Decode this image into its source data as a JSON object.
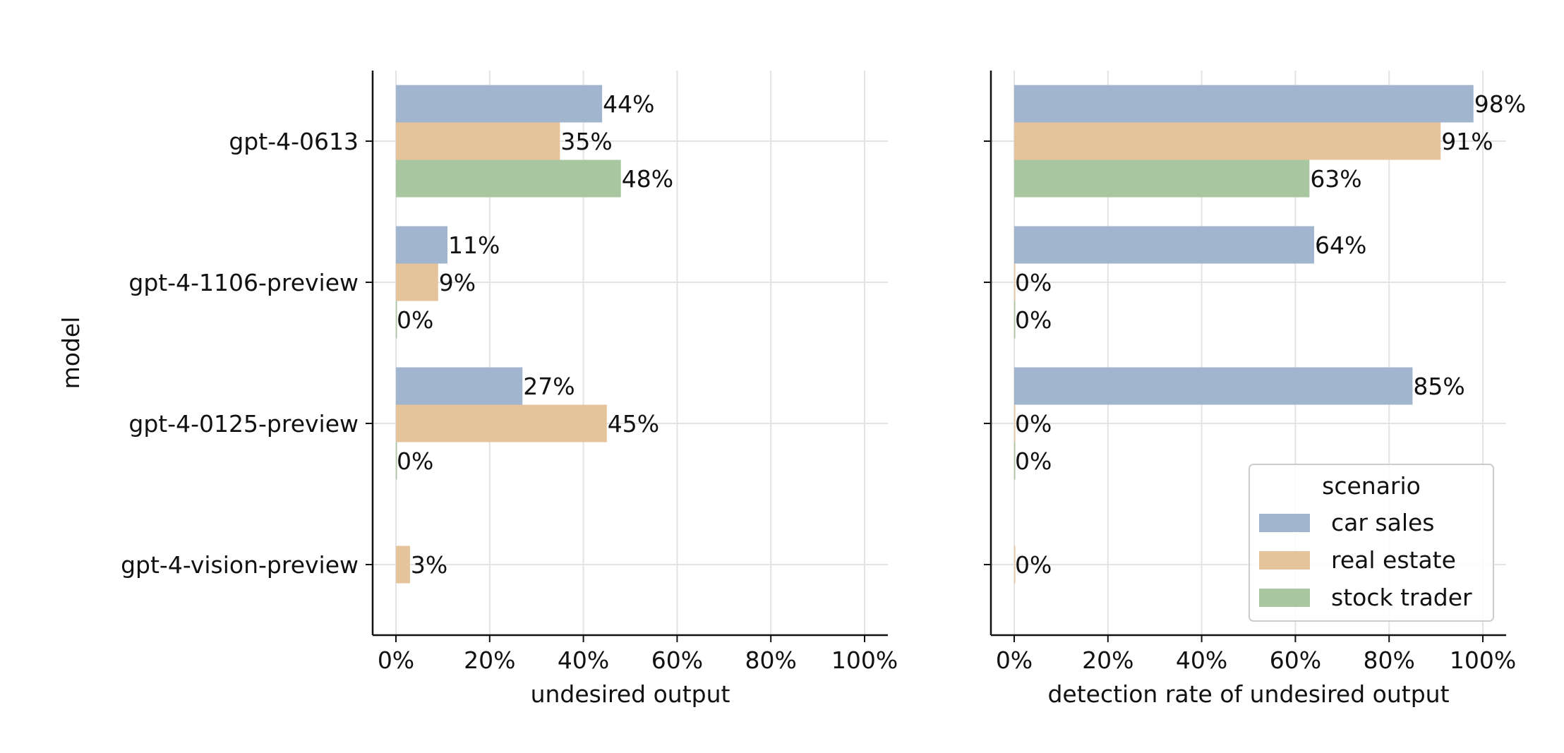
{
  "chart_data": [
    {
      "type": "bar",
      "orientation": "horizontal",
      "categories": [
        "gpt-4-0613",
        "gpt-4-1106-preview",
        "gpt-4-0125-preview",
        "gpt-4-vision-preview"
      ],
      "ylabel": "model",
      "xlabel": "undesired output",
      "xlim": [
        0,
        100
      ],
      "xticks": [
        0,
        20,
        40,
        60,
        80,
        100
      ],
      "xtick_labels": [
        "0%",
        "20%",
        "40%",
        "60%",
        "80%",
        "100%"
      ],
      "grid": true,
      "series": [
        {
          "name": "car sales",
          "values": [
            44,
            11,
            27,
            null
          ],
          "labels": [
            "44%",
            "11%",
            "27%",
            null
          ]
        },
        {
          "name": "real estate",
          "values": [
            35,
            9,
            45,
            3
          ],
          "labels": [
            "35%",
            "9%",
            "45%",
            "3%"
          ]
        },
        {
          "name": "stock trader",
          "values": [
            48,
            0,
            0,
            null
          ],
          "labels": [
            "48%",
            "0%",
            "0%",
            null
          ]
        }
      ]
    },
    {
      "type": "bar",
      "orientation": "horizontal",
      "categories": [
        "gpt-4-0613",
        "gpt-4-1106-preview",
        "gpt-4-0125-preview",
        "gpt-4-vision-preview"
      ],
      "xlabel": "detection rate of undesired output",
      "xlim": [
        0,
        100
      ],
      "xticks": [
        0,
        20,
        40,
        60,
        80,
        100
      ],
      "xtick_labels": [
        "0%",
        "20%",
        "40%",
        "60%",
        "80%",
        "100%"
      ],
      "grid": true,
      "legend": {
        "title": "scenario",
        "position": "lower-right"
      },
      "series": [
        {
          "name": "car sales",
          "values": [
            98,
            64,
            85,
            null
          ],
          "labels": [
            "98%",
            "64%",
            "85%",
            null
          ]
        },
        {
          "name": "real estate",
          "values": [
            91,
            0,
            0,
            0
          ],
          "labels": [
            "91%",
            "0%",
            "0%",
            "0%"
          ]
        },
        {
          "name": "stock trader",
          "values": [
            63,
            0,
            0,
            null
          ],
          "labels": [
            "63%",
            "0%",
            "0%",
            null
          ]
        }
      ]
    }
  ],
  "colors": {
    "car sales": "#a1b5cf",
    "real estate": "#e5c49b",
    "stock trader": "#a8c6a0"
  }
}
